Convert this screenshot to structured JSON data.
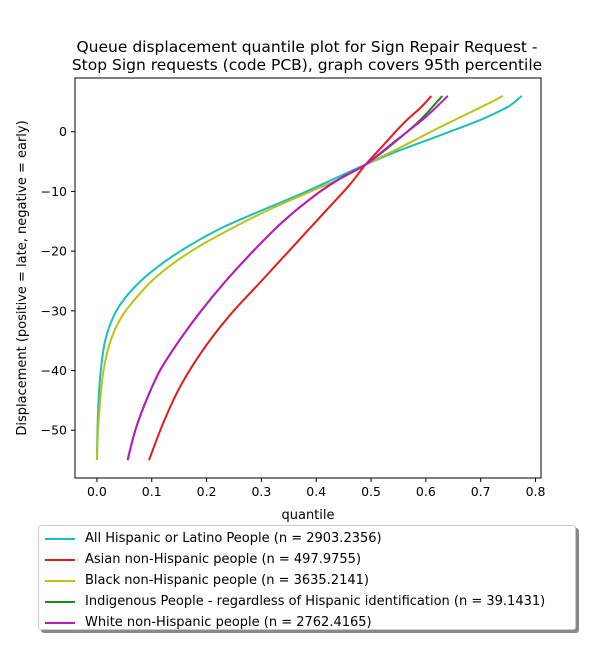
{
  "chart_data": {
    "type": "line",
    "title_lines": [
      "Queue displacement quantile plot for Sign Repair Request -",
      "Stop Sign  requests (code PCB), graph covers 95th percentile"
    ],
    "xlabel": "quantile",
    "ylabel": "Displacement (positive = late, negative = early)",
    "xlim": [
      -0.04,
      0.81
    ],
    "ylim": [
      -58,
      9
    ],
    "xticks": [
      0.0,
      0.1,
      0.2,
      0.3,
      0.4,
      0.5,
      0.6,
      0.7,
      0.8
    ],
    "xtick_labels": [
      "0.0",
      "0.1",
      "0.2",
      "0.3",
      "0.4",
      "0.5",
      "0.6",
      "0.7",
      "0.8"
    ],
    "yticks": [
      -50,
      -40,
      -30,
      -20,
      -10,
      0
    ],
    "ytick_labels": [
      "−50",
      "−40",
      "−30",
      "−20",
      "−10",
      "0"
    ],
    "grid": false,
    "legend_placement": "below plot",
    "series": [
      {
        "name": "All Hispanic or Latino People (n = 2903.2356)",
        "color": "#17bfbf",
        "points": [
          [
            0.0,
            -55
          ],
          [
            0.001,
            -50
          ],
          [
            0.003,
            -45
          ],
          [
            0.007,
            -40
          ],
          [
            0.015,
            -35
          ],
          [
            0.03,
            -31
          ],
          [
            0.05,
            -28
          ],
          [
            0.08,
            -25
          ],
          [
            0.12,
            -22
          ],
          [
            0.17,
            -19
          ],
          [
            0.23,
            -16
          ],
          [
            0.3,
            -13.2
          ],
          [
            0.37,
            -10.5
          ],
          [
            0.43,
            -8
          ],
          [
            0.49,
            -5.5
          ],
          [
            0.55,
            -3.2
          ],
          [
            0.62,
            -0.8
          ],
          [
            0.7,
            2
          ],
          [
            0.75,
            4.2
          ],
          [
            0.775,
            6
          ]
        ]
      },
      {
        "name": "Asian non-Hispanic people (n = 497.9755)",
        "color": "#e41a1a",
        "points": [
          [
            0.095,
            -55
          ],
          [
            0.12,
            -49
          ],
          [
            0.15,
            -43
          ],
          [
            0.19,
            -37
          ],
          [
            0.24,
            -31
          ],
          [
            0.3,
            -25
          ],
          [
            0.36,
            -19
          ],
          [
            0.42,
            -13
          ],
          [
            0.46,
            -9
          ],
          [
            0.49,
            -5.5
          ],
          [
            0.52,
            -2.5
          ],
          [
            0.56,
            1.5
          ],
          [
            0.59,
            4
          ],
          [
            0.61,
            6
          ]
        ]
      },
      {
        "name": "Black non-Hispanic people (n = 3635.2141)",
        "color": "#bfbf17",
        "points": [
          [
            0.0,
            -55
          ],
          [
            0.002,
            -50
          ],
          [
            0.006,
            -45
          ],
          [
            0.012,
            -40
          ],
          [
            0.025,
            -35
          ],
          [
            0.045,
            -31
          ],
          [
            0.07,
            -28
          ],
          [
            0.1,
            -25
          ],
          [
            0.14,
            -22
          ],
          [
            0.19,
            -19
          ],
          [
            0.25,
            -16
          ],
          [
            0.32,
            -12.8
          ],
          [
            0.39,
            -10
          ],
          [
            0.45,
            -7.6
          ],
          [
            0.49,
            -5.5
          ],
          [
            0.55,
            -2.8
          ],
          [
            0.62,
            0.5
          ],
          [
            0.68,
            3.2
          ],
          [
            0.72,
            5
          ],
          [
            0.74,
            6
          ]
        ]
      },
      {
        "name": "Indigenous People - regardless of Hispanic identification (n = 39.1431)",
        "color": "#1a8a1a",
        "points": [
          [
            0.056,
            -55
          ],
          [
            0.07,
            -50
          ],
          [
            0.09,
            -45
          ],
          [
            0.115,
            -40
          ],
          [
            0.15,
            -35
          ],
          [
            0.19,
            -30
          ],
          [
            0.235,
            -25
          ],
          [
            0.285,
            -20
          ],
          [
            0.34,
            -15
          ],
          [
            0.4,
            -10.5
          ],
          [
            0.45,
            -7.5
          ],
          [
            0.49,
            -5.5
          ],
          [
            0.54,
            -2
          ],
          [
            0.59,
            2
          ],
          [
            0.63,
            6
          ]
        ]
      },
      {
        "name": "White non-Hispanic people (n = 2762.4165)",
        "color": "#bf17bf",
        "points": [
          [
            0.056,
            -55
          ],
          [
            0.07,
            -50
          ],
          [
            0.09,
            -45
          ],
          [
            0.115,
            -40
          ],
          [
            0.15,
            -35
          ],
          [
            0.19,
            -30
          ],
          [
            0.235,
            -25
          ],
          [
            0.285,
            -20
          ],
          [
            0.34,
            -15
          ],
          [
            0.4,
            -10.5
          ],
          [
            0.45,
            -7.5
          ],
          [
            0.49,
            -5.5
          ],
          [
            0.545,
            -1.5
          ],
          [
            0.6,
            2.5
          ],
          [
            0.64,
            6
          ]
        ]
      }
    ]
  }
}
